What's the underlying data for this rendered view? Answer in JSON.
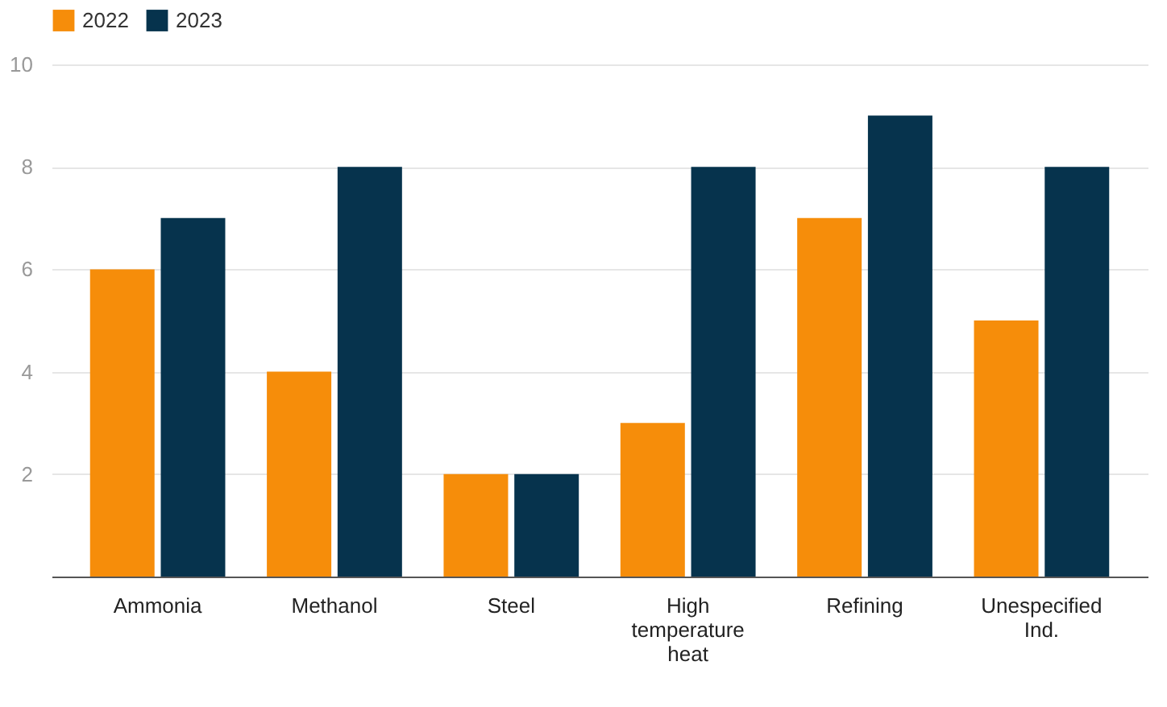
{
  "chart_data": {
    "type": "bar",
    "categories": [
      "Ammonia",
      "Methanol",
      "Steel",
      "High temperature heat",
      "Refining",
      "Unespecified Ind."
    ],
    "series": [
      {
        "name": "2022",
        "color": "#f68d0a",
        "values": [
          6,
          4,
          2,
          3,
          7,
          5
        ]
      },
      {
        "name": "2023",
        "color": "#06334d",
        "values": [
          7,
          8,
          2,
          8,
          9,
          8
        ]
      }
    ],
    "ylim": [
      0,
      10
    ],
    "yticks": [
      {
        "value": 0,
        "label": null
      },
      2,
      4,
      6,
      8,
      10
    ],
    "grid": "y",
    "legend": "top left"
  }
}
